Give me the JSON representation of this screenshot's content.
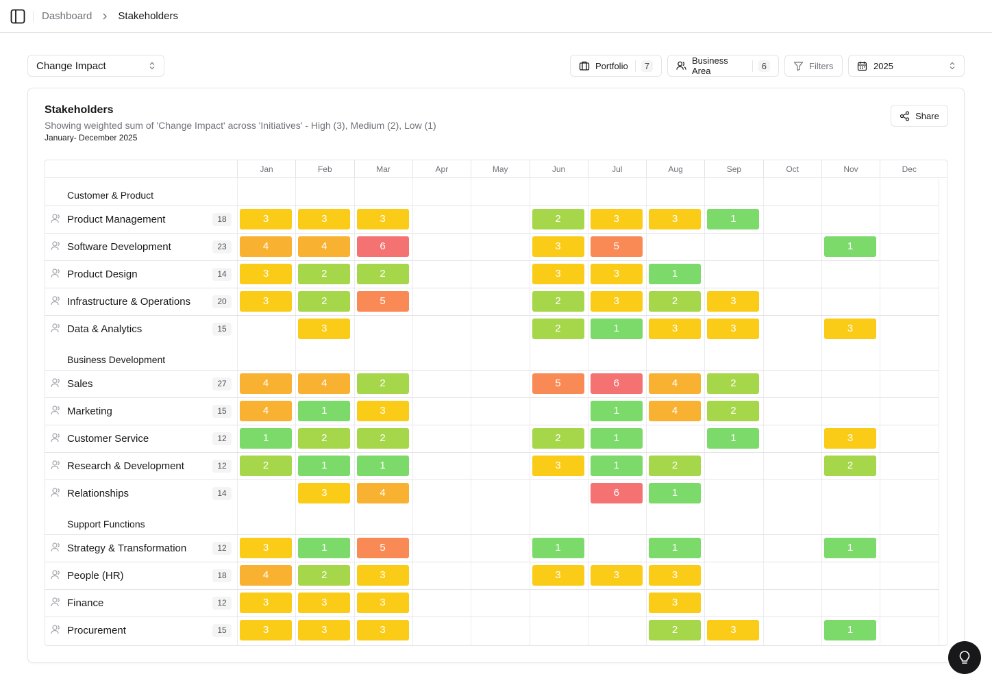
{
  "breadcrumb": {
    "parent": "Dashboard",
    "current": "Stakeholders"
  },
  "toolbar": {
    "metric": "Change Impact",
    "portfolio": {
      "label": "Portfolio",
      "count": "7"
    },
    "business_area": {
      "label": "Business Area",
      "count": "6"
    },
    "filters": "Filters",
    "year": "2025"
  },
  "card": {
    "title": "Stakeholders",
    "description": "Showing weighted sum of 'Change Impact' across 'Initiatives' - High (3), Medium (2), Low (1)",
    "range": "January- December 2025",
    "share": "Share"
  },
  "colors": {
    "1": "#7bda6a",
    "2": "#a6d64a",
    "3": "#facc18",
    "4": "#f9b132",
    "5": "#f98a56",
    "6": "#f57273"
  },
  "months": [
    "Jan",
    "Feb",
    "Mar",
    "Apr",
    "May",
    "Jun",
    "Jul",
    "Aug",
    "Sep",
    "Oct",
    "Nov",
    "Dec"
  ],
  "groups": [
    {
      "name": "Customer & Product",
      "rows": [
        {
          "name": "Product Management",
          "total": "18",
          "values": [
            3,
            3,
            3,
            null,
            null,
            2,
            3,
            3,
            1,
            null,
            null,
            null
          ]
        },
        {
          "name": "Software Development",
          "total": "23",
          "values": [
            4,
            4,
            6,
            null,
            null,
            3,
            5,
            null,
            null,
            null,
            1,
            null
          ]
        },
        {
          "name": "Product Design",
          "total": "14",
          "values": [
            3,
            2,
            2,
            null,
            null,
            3,
            3,
            1,
            null,
            null,
            null,
            null
          ]
        },
        {
          "name": "Infrastructure & Operations",
          "total": "20",
          "values": [
            3,
            2,
            5,
            null,
            null,
            2,
            3,
            2,
            3,
            null,
            null,
            null
          ]
        },
        {
          "name": "Data & Analytics",
          "total": "15",
          "values": [
            null,
            3,
            null,
            null,
            null,
            2,
            1,
            3,
            3,
            null,
            3,
            null
          ]
        }
      ]
    },
    {
      "name": "Business Development",
      "rows": [
        {
          "name": "Sales",
          "total": "27",
          "values": [
            4,
            4,
            2,
            null,
            null,
            5,
            6,
            4,
            2,
            null,
            null,
            null
          ]
        },
        {
          "name": "Marketing",
          "total": "15",
          "values": [
            4,
            1,
            3,
            null,
            null,
            null,
            1,
            4,
            2,
            null,
            null,
            null
          ]
        },
        {
          "name": "Customer Service",
          "total": "12",
          "values": [
            1,
            2,
            2,
            null,
            null,
            2,
            1,
            null,
            1,
            null,
            3,
            null
          ]
        },
        {
          "name": "Research & Development",
          "total": "12",
          "values": [
            2,
            1,
            1,
            null,
            null,
            3,
            1,
            2,
            null,
            null,
            2,
            null
          ]
        },
        {
          "name": "Relationships",
          "total": "14",
          "values": [
            null,
            3,
            4,
            null,
            null,
            null,
            6,
            1,
            null,
            null,
            null,
            null
          ]
        }
      ]
    },
    {
      "name": "Support Functions",
      "rows": [
        {
          "name": "Strategy & Transformation",
          "total": "12",
          "values": [
            3,
            1,
            5,
            null,
            null,
            1,
            null,
            1,
            null,
            null,
            1,
            null
          ]
        },
        {
          "name": "People (HR)",
          "total": "18",
          "values": [
            4,
            2,
            3,
            null,
            null,
            3,
            3,
            3,
            null,
            null,
            null,
            null
          ]
        },
        {
          "name": "Finance",
          "total": "12",
          "values": [
            3,
            3,
            3,
            null,
            null,
            null,
            null,
            3,
            null,
            null,
            null,
            null
          ]
        },
        {
          "name": "Procurement",
          "total": "15",
          "values": [
            3,
            3,
            3,
            null,
            null,
            null,
            null,
            2,
            3,
            null,
            1,
            null
          ]
        }
      ]
    }
  ]
}
